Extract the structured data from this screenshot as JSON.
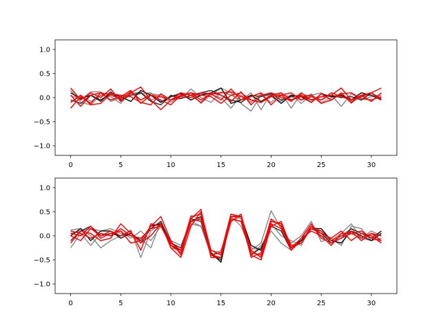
{
  "chart_data": [
    {
      "type": "line",
      "title": "",
      "xlabel": "",
      "ylabel": "",
      "xlim": [
        -1.55,
        32.55
      ],
      "ylim": [
        -1.2,
        1.2
      ],
      "x_ticks": [
        0,
        5,
        10,
        15,
        20,
        25,
        30
      ],
      "y_ticks": [
        -1.0,
        -0.5,
        0.0,
        0.5,
        1.0
      ],
      "y_tick_labels": [
        "−1.0",
        "−0.5",
        "0.0",
        "0.5",
        "1.0"
      ],
      "x": [
        0,
        1,
        2,
        3,
        4,
        5,
        6,
        7,
        8,
        9,
        10,
        11,
        12,
        13,
        14,
        15,
        16,
        17,
        18,
        19,
        20,
        21,
        22,
        23,
        24,
        25,
        26,
        27,
        28,
        29,
        30,
        31
      ],
      "series": [
        {
          "color": "#7f7f7f",
          "values": [
            0.15,
            -0.1,
            -0.15,
            0.05,
            0.1,
            -0.05,
            0.08,
            0.12,
            -0.05,
            0.02,
            -0.1,
            0.05,
            0.1,
            -0.12,
            0.06,
            0.0,
            -0.22,
            0.05,
            -0.1,
            0.08,
            0.02,
            -0.08,
            0.06,
            -0.12,
            0.05,
            0.1,
            -0.05,
            0.08,
            -0.12,
            0.05,
            0.1,
            -0.05
          ]
        },
        {
          "color": "#7f7f7f",
          "values": [
            0.05,
            -0.05,
            0.12,
            0.12,
            -0.08,
            0.0,
            0.05,
            0.08,
            0.1,
            -0.08,
            0.02,
            0.1,
            -0.05,
            0.08,
            0.05,
            0.2,
            0.1,
            -0.12,
            -0.28,
            0.05,
            -0.1,
            0.1,
            -0.22,
            0.08,
            0.02,
            -0.05,
            0.05,
            -0.18,
            0.08,
            -0.05,
            0.02,
            0.05
          ]
        },
        {
          "color": "#7f7f7f",
          "values": [
            -0.1,
            0.05,
            -0.08,
            0.05,
            0.02,
            -0.12,
            0.1,
            -0.05,
            0.08,
            0.05,
            -0.05,
            -0.02,
            0.18,
            0.0,
            -0.1,
            0.12,
            0.05,
            -0.05,
            0.1,
            -0.25,
            0.1,
            0.05,
            0.02,
            -0.05,
            0.08,
            -0.1,
            0.0,
            0.05,
            -0.08,
            0.02,
            0.05,
            -0.02
          ]
        },
        {
          "color": "#333333",
          "values": [
            -0.05,
            -0.12,
            0.05,
            -0.08,
            0.12,
            -0.05,
            0.05,
            0.1,
            -0.08,
            -0.15,
            0.05,
            -0.02,
            0.05,
            0.1,
            0.15,
            0.05,
            -0.05,
            -0.1,
            0.05,
            0.02,
            0.08,
            -0.05,
            0.02,
            0.05,
            -0.05,
            0.02,
            0.05,
            0.0,
            0.02,
            -0.05,
            0.1,
            -0.02
          ]
        },
        {
          "color": "#111111",
          "values": [
            0.1,
            -0.02,
            0.05,
            -0.05,
            0.08,
            0.02,
            -0.08,
            0.15,
            0.05,
            -0.1,
            0.02,
            0.08,
            -0.05,
            0.05,
            0.1,
            0.2,
            -0.12,
            -0.05,
            0.05,
            -0.08,
            0.05,
            -0.12,
            0.05,
            0.02,
            -0.1,
            0.08,
            0.02,
            0.05,
            -0.05,
            0.1,
            0.05,
            -0.05
          ]
        },
        {
          "color": "#ff0000",
          "values": [
            0.2,
            -0.05,
            0.1,
            0.0,
            0.18,
            -0.08,
            0.1,
            0.22,
            -0.05,
            -0.25,
            -0.05,
            0.05,
            0.0,
            0.1,
            0.08,
            -0.05,
            0.18,
            -0.05,
            0.02,
            0.1,
            -0.15,
            0.05,
            -0.08,
            0.1,
            -0.05,
            0.02,
            0.05,
            0.2,
            -0.05,
            0.02,
            0.1,
            0.2
          ]
        },
        {
          "color": "#ff0000",
          "values": [
            -0.22,
            0.02,
            -0.12,
            0.1,
            0.05,
            -0.02,
            0.12,
            -0.05,
            0.05,
            0.02,
            -0.05,
            0.1,
            0.05,
            -0.1,
            0.1,
            0.05,
            -0.08,
            0.12,
            -0.15,
            0.05,
            0.1,
            0.0,
            -0.05,
            0.05,
            -0.1,
            0.08,
            -0.05,
            0.1,
            -0.1,
            0.05,
            -0.08,
            0.1
          ]
        },
        {
          "color": "#ff0000",
          "values": [
            0.05,
            -0.18,
            0.05,
            0.1,
            -0.05,
            0.02,
            0.15,
            -0.12,
            0.05,
            -0.05,
            -0.15,
            0.05,
            0.1,
            0.05,
            0.02,
            -0.12,
            0.05,
            0.1,
            -0.05,
            -0.1,
            0.05,
            0.1,
            -0.05,
            0.02,
            0.05,
            -0.12,
            -0.05,
            0.08,
            0.1,
            -0.02,
            -0.05,
            0.02
          ]
        },
        {
          "color": "#ff0000",
          "values": [
            -0.1,
            0.05,
            -0.15,
            -0.12,
            0.08,
            0.05,
            0.02,
            -0.1,
            -0.15,
            0.08,
            -0.05,
            0.02,
            0.1,
            -0.05,
            0.08,
            0.1,
            0.12,
            0.02,
            -0.05,
            -0.1,
            0.02,
            0.05,
            0.1,
            -0.05,
            0.02,
            -0.05,
            0.1,
            0.02,
            -0.05,
            0.05,
            0.1,
            -0.05
          ]
        }
      ]
    },
    {
      "type": "line",
      "title": "",
      "xlabel": "",
      "ylabel": "",
      "xlim": [
        -1.55,
        32.55
      ],
      "ylim": [
        -1.2,
        1.2
      ],
      "x_ticks": [
        0,
        5,
        10,
        15,
        20,
        25,
        30
      ],
      "y_ticks": [
        -1.0,
        -0.5,
        0.0,
        0.5,
        1.0
      ],
      "y_tick_labels": [
        "−1.0",
        "−0.5",
        "0.0",
        "0.5",
        "1.0"
      ],
      "x": [
        0,
        1,
        2,
        3,
        4,
        5,
        6,
        7,
        8,
        9,
        10,
        11,
        12,
        13,
        14,
        15,
        16,
        17,
        18,
        19,
        20,
        21,
        22,
        23,
        24,
        25,
        26,
        27,
        28,
        29,
        30,
        31
      ],
      "series": [
        {
          "color": "#7f7f7f",
          "values": [
            0.12,
            0.15,
            0.0,
            -0.25,
            -0.1,
            0.0,
            0.12,
            -0.45,
            0.1,
            0.25,
            -0.25,
            -0.3,
            0.42,
            0.35,
            -0.35,
            -0.5,
            0.4,
            0.2,
            -0.3,
            -0.15,
            0.52,
            0.15,
            -0.15,
            0.0,
            0.3,
            -0.12,
            -0.05,
            -0.2,
            0.2,
            0.15,
            -0.1,
            -0.05
          ]
        },
        {
          "color": "#7f7f7f",
          "values": [
            -0.25,
            0.05,
            -0.2,
            0.05,
            0.0,
            0.1,
            -0.05,
            0.1,
            -0.1,
            0.2,
            -0.1,
            -0.2,
            0.3,
            0.2,
            -0.4,
            -0.3,
            0.3,
            0.4,
            -0.25,
            -0.3,
            0.25,
            0.0,
            -0.1,
            -0.2,
            0.2,
            0.1,
            -0.15,
            0.0,
            0.15,
            -0.05,
            0.1,
            0.0
          ]
        },
        {
          "color": "#7f7f7f",
          "values": [
            0.05,
            0.1,
            0.15,
            0.1,
            0.15,
            0.05,
            0.0,
            -0.05,
            -0.25,
            0.3,
            -0.15,
            -0.3,
            0.25,
            0.2,
            -0.3,
            -0.35,
            0.45,
            0.35,
            -0.4,
            -0.2,
            0.1,
            -0.15,
            -0.3,
            -0.05,
            0.2,
            0.0,
            -0.1,
            0.05,
            0.25,
            -0.05,
            -0.1,
            0.1
          ]
        },
        {
          "color": "#333333",
          "values": [
            -0.1,
            0.1,
            0.2,
            0.0,
            0.05,
            0.0,
            0.05,
            -0.15,
            0.15,
            0.3,
            -0.15,
            -0.25,
            0.35,
            0.3,
            -0.4,
            -0.5,
            0.35,
            0.3,
            -0.4,
            -0.25,
            0.2,
            0.1,
            -0.3,
            -0.1,
            0.15,
            0.05,
            -0.15,
            -0.05,
            0.15,
            0.05,
            -0.05,
            0.1
          ]
        },
        {
          "color": "#111111",
          "values": [
            0.0,
            0.15,
            -0.1,
            0.1,
            0.1,
            -0.05,
            0.05,
            -0.1,
            0.2,
            0.25,
            -0.2,
            -0.3,
            0.3,
            0.4,
            -0.35,
            -0.55,
            0.4,
            0.4,
            -0.2,
            -0.3,
            0.3,
            0.25,
            -0.25,
            -0.1,
            0.15,
            0.15,
            -0.1,
            -0.15,
            0.1,
            0.0,
            -0.1,
            0.05
          ]
        },
        {
          "color": "#ff0000",
          "values": [
            0.05,
            0.0,
            0.2,
            -0.05,
            0.05,
            0.1,
            -0.15,
            -0.1,
            0.2,
            0.4,
            -0.1,
            -0.4,
            0.35,
            0.55,
            -0.4,
            -0.35,
            0.45,
            0.4,
            -0.45,
            -0.35,
            0.35,
            0.2,
            -0.3,
            -0.05,
            0.1,
            0.0,
            -0.2,
            0.05,
            0.05,
            0.1,
            -0.05,
            -0.1
          ]
        },
        {
          "color": "#ff0000",
          "values": [
            -0.15,
            0.1,
            0.05,
            -0.1,
            -0.05,
            0.25,
            0.05,
            -0.15,
            0.0,
            0.25,
            -0.25,
            -0.45,
            0.2,
            0.5,
            -0.3,
            -0.4,
            0.4,
            0.4,
            -0.3,
            -0.45,
            0.3,
            0.25,
            -0.2,
            -0.15,
            0.2,
            0.05,
            -0.05,
            0.1,
            -0.1,
            0.05,
            0.0,
            -0.15
          ]
        },
        {
          "color": "#ff0000",
          "values": [
            0.0,
            -0.1,
            0.15,
            0.0,
            0.1,
            0.0,
            0.1,
            -0.3,
            0.25,
            0.2,
            -0.2,
            -0.35,
            0.3,
            0.35,
            -0.4,
            -0.45,
            0.35,
            0.3,
            -0.4,
            -0.5,
            0.2,
            0.3,
            -0.25,
            -0.15,
            0.15,
            0.1,
            -0.1,
            0.0,
            0.1,
            -0.1,
            0.05,
            0.0
          ]
        },
        {
          "color": "#ff0000",
          "values": [
            0.1,
            0.05,
            -0.05,
            0.05,
            0.0,
            0.15,
            0.0,
            -0.05,
            0.15,
            0.2,
            -0.15,
            -0.3,
            0.4,
            0.45,
            -0.45,
            -0.45,
            0.3,
            0.45,
            -0.35,
            -0.4,
            0.25,
            0.15,
            -0.25,
            -0.05,
            0.25,
            -0.05,
            -0.15,
            -0.05,
            0.05,
            -0.05,
            0.05,
            -0.1
          ]
        }
      ]
    }
  ]
}
